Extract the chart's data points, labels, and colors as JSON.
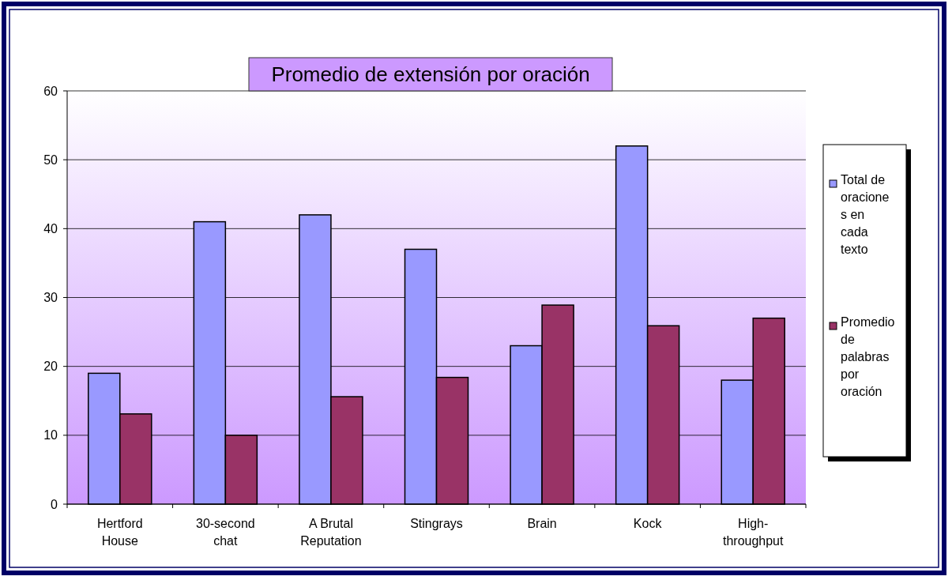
{
  "chart_data": {
    "type": "bar",
    "title": "Promedio de extensión por oración",
    "categories": [
      "Hertford House",
      "30-second chat",
      "A Brutal Reputation",
      "Stingrays",
      "Brain",
      "Kock",
      "High-throughput"
    ],
    "series": [
      {
        "name": "Total de oraciones en cada texto",
        "color": "#9999ff",
        "values": [
          19,
          41,
          42,
          37,
          23,
          52,
          18
        ]
      },
      {
        "name": "Promedio de palabras por oración",
        "color": "#993366",
        "values": [
          13.1,
          10,
          15.6,
          18.4,
          28.9,
          25.9,
          27
        ]
      }
    ],
    "ylim": [
      0,
      60
    ],
    "yticks": [
      0,
      10,
      20,
      30,
      40,
      50,
      60
    ],
    "grid": "y",
    "legend": "right"
  }
}
